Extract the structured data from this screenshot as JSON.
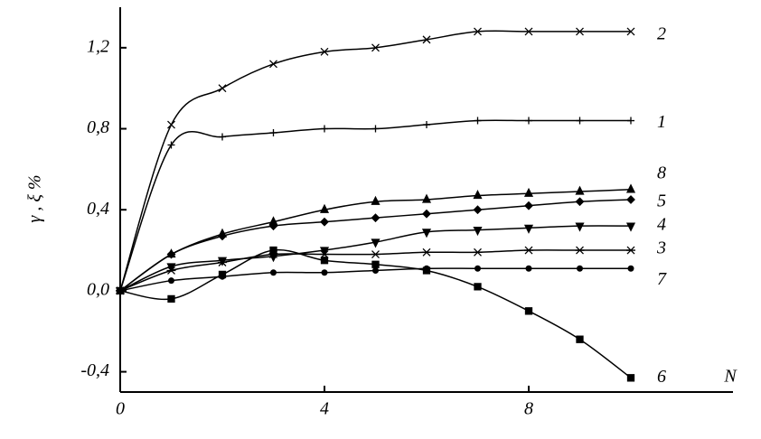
{
  "chart_data": {
    "type": "line",
    "x_label": "N",
    "y_label": "γ , ξ %",
    "x": [
      0,
      1,
      2,
      3,
      4,
      5,
      6,
      7,
      8,
      9,
      10
    ],
    "xlim": [
      0,
      12
    ],
    "xticks": [
      0,
      4,
      8
    ],
    "ylim": [
      -0.5,
      1.4
    ],
    "yticks": [
      {
        "value": -0.4,
        "label": "-0,4"
      },
      {
        "value": 0,
        "label": "0,0"
      },
      {
        "value": 0.4,
        "label": "0,4"
      },
      {
        "value": 0.8,
        "label": "0,8"
      },
      {
        "value": 1.2,
        "label": "1,2"
      }
    ],
    "grid": false,
    "series": [
      {
        "name": "2",
        "color": "#000000",
        "marker": "x",
        "values": [
          0,
          0.82,
          1.0,
          1.12,
          1.18,
          1.2,
          1.24,
          1.28,
          1.28,
          1.28,
          1.28
        ]
      },
      {
        "name": "1",
        "color": "#000000",
        "marker": "+",
        "values": [
          0,
          0.72,
          0.76,
          0.78,
          0.8,
          0.8,
          0.82,
          0.84,
          0.84,
          0.84,
          0.84
        ]
      },
      {
        "name": "8",
        "color": "#000000",
        "marker": "triangle-up",
        "values": [
          0,
          0.18,
          0.28,
          0.34,
          0.4,
          0.44,
          0.45,
          0.47,
          0.48,
          0.49,
          0.5
        ]
      },
      {
        "name": "5",
        "color": "#000000",
        "marker": "diamond",
        "values": [
          0,
          0.18,
          0.27,
          0.32,
          0.34,
          0.36,
          0.38,
          0.4,
          0.42,
          0.44,
          0.45
        ]
      },
      {
        "name": "4",
        "color": "#000000",
        "marker": "triangle-down",
        "values": [
          0,
          0.12,
          0.15,
          0.17,
          0.2,
          0.24,
          0.29,
          0.3,
          0.31,
          0.32,
          0.32
        ]
      },
      {
        "name": "3",
        "color": "#000000",
        "marker": "asterisk",
        "values": [
          0,
          0.1,
          0.14,
          0.18,
          0.18,
          0.18,
          0.19,
          0.19,
          0.2,
          0.2,
          0.2
        ]
      },
      {
        "name": "7",
        "color": "#000000",
        "marker": "circle",
        "values": [
          0,
          0.05,
          0.07,
          0.09,
          0.09,
          0.1,
          0.11,
          0.11,
          0.11,
          0.11,
          0.11
        ]
      },
      {
        "name": "6",
        "color": "#000000",
        "marker": "square",
        "values": [
          0,
          -0.04,
          0.08,
          0.2,
          0.15,
          0.13,
          0.1,
          0.02,
          -0.1,
          -0.24,
          -0.43
        ]
      }
    ]
  }
}
